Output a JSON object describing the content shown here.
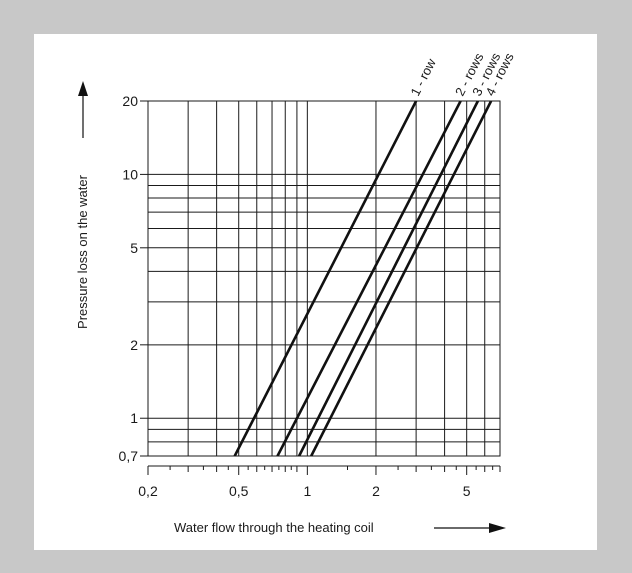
{
  "chart_data": {
    "type": "line",
    "x_scale": "log",
    "y_scale": "log",
    "xlim": [
      0.2,
      7
    ],
    "ylim": [
      0.7,
      20
    ],
    "grid": true,
    "xlabel": "Water flow through the heating coil",
    "ylabel": "Pressure loss on the water",
    "x_tick_labels": [
      {
        "value": 0.2,
        "label": "0,2"
      },
      {
        "value": 0.5,
        "label": "0,5"
      },
      {
        "value": 1,
        "label": "1"
      },
      {
        "value": 2,
        "label": "2"
      },
      {
        "value": 5,
        "label": "5"
      }
    ],
    "y_tick_labels": [
      {
        "value": 0.7,
        "label": "0,7"
      },
      {
        "value": 1,
        "label": "1"
      },
      {
        "value": 2,
        "label": "2"
      },
      {
        "value": 5,
        "label": "5"
      },
      {
        "value": 10,
        "label": "10"
      },
      {
        "value": 20,
        "label": "20"
      }
    ],
    "x_gridlines": [
      0.3,
      0.4,
      0.5,
      0.6,
      0.7,
      0.8,
      0.9,
      1,
      2,
      3,
      4,
      5,
      6,
      7
    ],
    "y_gridlines": [
      0.7,
      0.8,
      0.9,
      1,
      2,
      3,
      4,
      5,
      6,
      7,
      8,
      9,
      10,
      20
    ],
    "x_minor_ticks": [
      0.2,
      0.3,
      0.4,
      0.5,
      0.6,
      0.7,
      0.8,
      0.9,
      1,
      2,
      3,
      4,
      5,
      6,
      7
    ],
    "series": [
      {
        "name": "1 - row",
        "x": [
          0.48,
          3.0
        ],
        "y": [
          0.7,
          20
        ]
      },
      {
        "name": "2 - rows",
        "x": [
          0.74,
          4.7
        ],
        "y": [
          0.7,
          20
        ]
      },
      {
        "name": "3 - rows",
        "x": [
          0.92,
          5.6
        ],
        "y": [
          0.7,
          20
        ]
      },
      {
        "name": "4 - rows",
        "x": [
          1.04,
          6.4
        ],
        "y": [
          0.7,
          20
        ]
      }
    ],
    "colors": {
      "line": "#111111",
      "grid": "#1a1a1a",
      "panel_bg": "#ffffff",
      "page_bg": "#c8c8c8"
    }
  }
}
